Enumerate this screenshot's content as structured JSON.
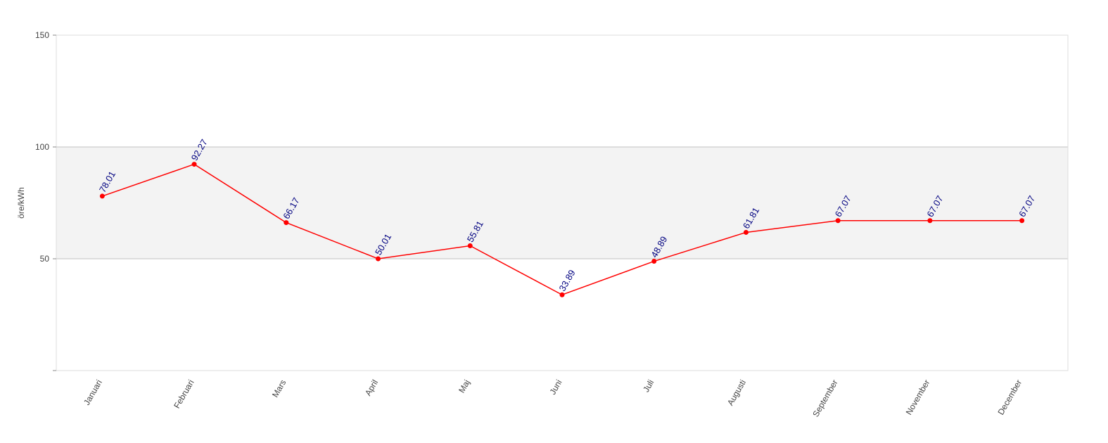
{
  "chart_data": {
    "type": "line",
    "title": "",
    "xlabel": "",
    "ylabel": "öre/kWh",
    "ylim": [
      0,
      150
    ],
    "yticks": [
      {
        "value": 0,
        "label": ""
      },
      {
        "value": 50,
        "label": "50"
      },
      {
        "value": 100,
        "label": "100"
      },
      {
        "value": 150,
        "label": "150"
      }
    ],
    "band": {
      "from": 50,
      "to": 100,
      "color": "#f3f3f3"
    },
    "grid": true,
    "legend": "none",
    "categories": [
      "Januari",
      "Februari",
      "Mars",
      "April",
      "Maj",
      "Juni",
      "Juli",
      "Augusti",
      "September",
      "November",
      "December"
    ],
    "series": [
      {
        "values": [
          78.01,
          92.27,
          66.17,
          50.01,
          55.81,
          33.89,
          48.89,
          61.81,
          67.07,
          67.07,
          67.07
        ],
        "labels": [
          "78.01",
          "92.27",
          "66.17",
          "50.01",
          "55.81",
          "33.89",
          "48.89",
          "61.81",
          "67.07",
          "67.07",
          "67.07"
        ],
        "color": "#ff0000"
      }
    ],
    "colors": {
      "line": "#ff0000",
      "data_label": "#000080",
      "axis_text": "#444444",
      "grid": "#c0c0c0",
      "frame": "#dddddd"
    }
  }
}
